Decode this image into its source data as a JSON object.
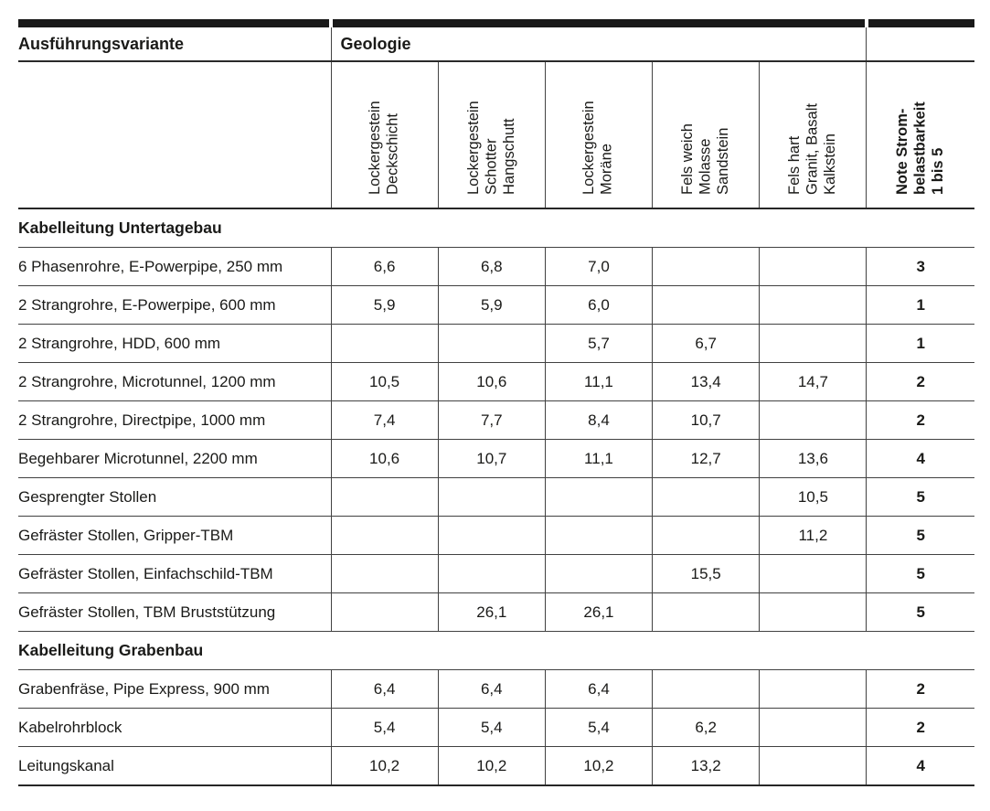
{
  "table": {
    "col1_header": "Ausführungsvariante",
    "group_header": "Geologie",
    "columns": [
      {
        "label": "Lockergestein\nDeckschicht",
        "bold": false
      },
      {
        "label": "Lockergestein\nSchotter\nHangschutt",
        "bold": false
      },
      {
        "label": "Lockergestein\nMoräne",
        "bold": false
      },
      {
        "label": "Fels weich\nMolasse\nSandstein",
        "bold": false
      },
      {
        "label": "Fels hart\nGranit, Basalt\nKalkstein",
        "bold": false
      },
      {
        "label": "Note Strom-\nbelastbarkeit\n1 bis 5",
        "bold": true
      }
    ],
    "sections": [
      {
        "title": "Kabelleitung Untertagebau",
        "rows": [
          {
            "label": "6 Phasenrohre, E-Powerpipe, 250 mm",
            "values": [
              "6,6",
              "6,8",
              "7,0",
              "",
              ""
            ],
            "note": "3"
          },
          {
            "label": "2 Strangrohre, E-Powerpipe, 600 mm",
            "values": [
              "5,9",
              "5,9",
              "6,0",
              "",
              ""
            ],
            "note": "1"
          },
          {
            "label": "2 Strangrohre, HDD, 600 mm",
            "values": [
              "",
              "",
              "5,7",
              "6,7",
              ""
            ],
            "note": "1"
          },
          {
            "label": "2 Strangrohre, Microtunnel, 1200 mm",
            "values": [
              "10,5",
              "10,6",
              "11,1",
              "13,4",
              "14,7"
            ],
            "note": "2"
          },
          {
            "label": "2 Strangrohre, Directpipe, 1000 mm",
            "values": [
              "7,4",
              "7,7",
              "8,4",
              "10,7",
              ""
            ],
            "note": "2"
          },
          {
            "label": "Begehbarer Microtunnel, 2200 mm",
            "values": [
              "10,6",
              "10,7",
              "11,1",
              "12,7",
              "13,6"
            ],
            "note": "4"
          },
          {
            "label": "Gesprengter Stollen",
            "values": [
              "",
              "",
              "",
              "",
              "10,5"
            ],
            "note": "5"
          },
          {
            "label": "Gefräster Stollen, Gripper-TBM",
            "values": [
              "",
              "",
              "",
              "",
              "11,2"
            ],
            "note": "5"
          },
          {
            "label": "Gefräster Stollen, Einfachschild-TBM",
            "values": [
              "",
              "",
              "",
              "15,5",
              ""
            ],
            "note": "5"
          },
          {
            "label": "Gefräster Stollen, TBM Bruststützung",
            "values": [
              "",
              "26,1",
              "26,1",
              "",
              ""
            ],
            "note": "5"
          }
        ]
      },
      {
        "title": "Kabelleitung Grabenbau",
        "rows": [
          {
            "label": "Grabenfräse, Pipe Express, 900 mm",
            "values": [
              "6,4",
              "6,4",
              "6,4",
              "",
              ""
            ],
            "note": "2"
          },
          {
            "label": "Kabelrohrblock",
            "values": [
              "5,4",
              "5,4",
              "5,4",
              "6,2",
              ""
            ],
            "note": "2"
          },
          {
            "label": "Leitungskanal",
            "values": [
              "10,2",
              "10,2",
              "10,2",
              "13,2",
              ""
            ],
            "note": "4"
          }
        ]
      }
    ]
  }
}
